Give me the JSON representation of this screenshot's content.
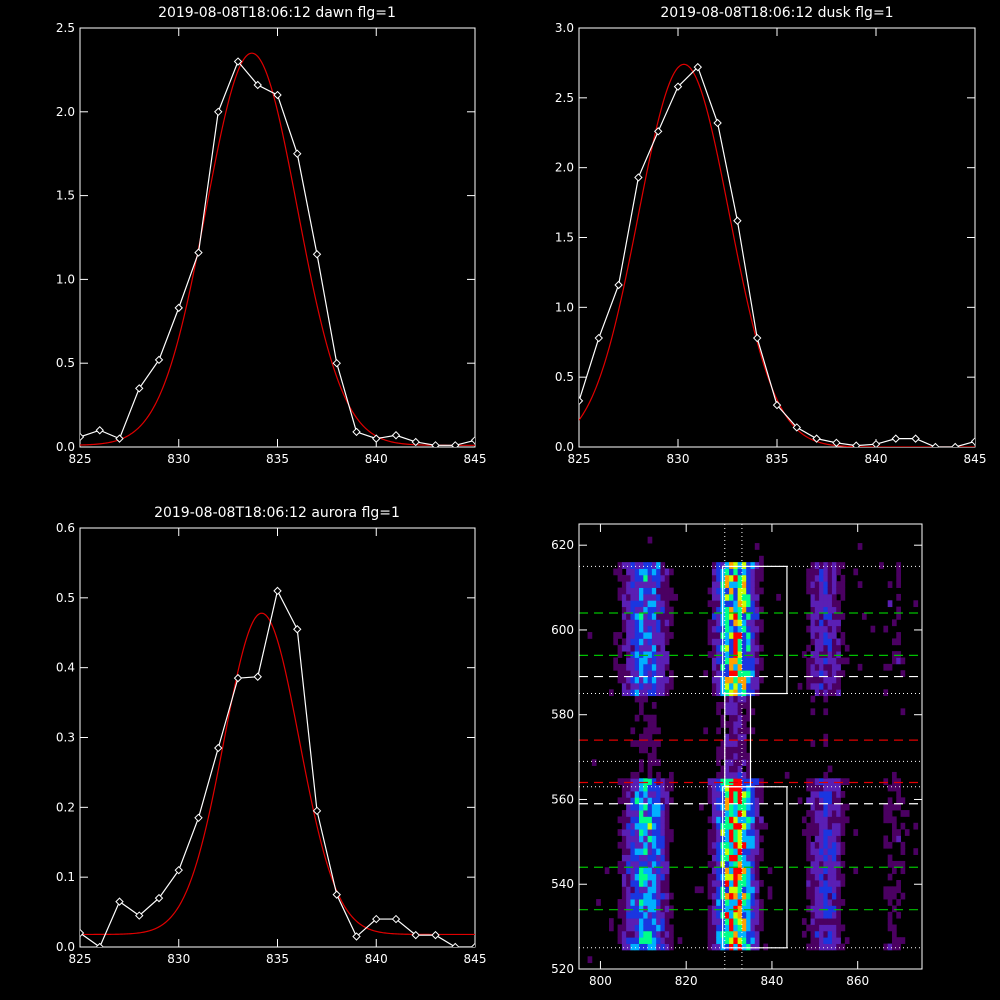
{
  "chart_data": [
    {
      "type": "line",
      "title": "2019-08-08T18:06:12 dawn flg=1",
      "xlabel": "",
      "ylabel": "",
      "xlim": [
        825,
        845
      ],
      "ylim": [
        0,
        2.5
      ],
      "xticks": [
        "825",
        "830",
        "835",
        "840",
        "845"
      ],
      "yticks": [
        "0.0",
        "0.5",
        "1.0",
        "1.5",
        "2.0",
        "2.5"
      ],
      "ytick_values": [
        0,
        0.5,
        1.0,
        1.5,
        2.0,
        2.5
      ],
      "series": [
        {
          "kind": "data-markers",
          "x": [
            825,
            826,
            827,
            828,
            829,
            830,
            831,
            832,
            833,
            834,
            835,
            836,
            837,
            838,
            839,
            840,
            841,
            842,
            843,
            844,
            845
          ],
          "y": [
            0.06,
            0.1,
            0.05,
            0.35,
            0.52,
            0.83,
            1.16,
            2.0,
            2.3,
            2.16,
            2.1,
            1.75,
            1.15,
            0.5,
            0.09,
            0.05,
            0.07,
            0.03,
            0.01,
            0.01,
            0.04
          ]
        },
        {
          "kind": "gaussian-fit",
          "amplitude": 2.34,
          "center": 833.7,
          "sigma": 2.3,
          "offset": 0.01
        }
      ]
    },
    {
      "type": "line",
      "title": "2019-08-08T18:06:12 dusk flg=1",
      "xlabel": "",
      "ylabel": "",
      "xlim": [
        825,
        845
      ],
      "ylim": [
        0,
        3.0
      ],
      "xticks": [
        "825",
        "830",
        "835",
        "840",
        "845"
      ],
      "yticks": [
        "0.0",
        "0.5",
        "1.0",
        "1.5",
        "2.0",
        "2.5",
        "3.0"
      ],
      "ytick_values": [
        0,
        0.5,
        1.0,
        1.5,
        2.0,
        2.5,
        3.0
      ],
      "series": [
        {
          "kind": "data-markers",
          "x": [
            825,
            826,
            827,
            828,
            829,
            830,
            831,
            832,
            833,
            834,
            835,
            836,
            837,
            838,
            839,
            840,
            841,
            842,
            843,
            844,
            845
          ],
          "y": [
            0.33,
            0.78,
            1.16,
            1.93,
            2.26,
            2.58,
            2.72,
            2.32,
            1.62,
            0.78,
            0.3,
            0.14,
            0.06,
            0.03,
            0.01,
            0.02,
            0.06,
            0.06,
            0.0,
            0.0,
            0.04
          ]
        },
        {
          "kind": "gaussian-fit",
          "amplitude": 2.74,
          "center": 830.3,
          "sigma": 2.3,
          "offset": 0.0
        }
      ]
    },
    {
      "type": "line",
      "title": "2019-08-08T18:06:12 aurora flg=1",
      "xlabel": "",
      "ylabel": "",
      "xlim": [
        825,
        845
      ],
      "ylim": [
        0,
        0.6
      ],
      "xticks": [
        "825",
        "830",
        "835",
        "840",
        "845"
      ],
      "yticks": [
        "0.0",
        "0.1",
        "0.2",
        "0.3",
        "0.4",
        "0.5",
        "0.6"
      ],
      "ytick_values": [
        0,
        0.1,
        0.2,
        0.3,
        0.4,
        0.5,
        0.6
      ],
      "series": [
        {
          "kind": "data-markers",
          "x": [
            825,
            826,
            827,
            828,
            829,
            830,
            831,
            832,
            833,
            834,
            835,
            836,
            837,
            838,
            839,
            840,
            841,
            842,
            843,
            844,
            845
          ],
          "y": [
            0.02,
            0.0,
            0.065,
            0.045,
            0.07,
            0.11,
            0.185,
            0.285,
            0.385,
            0.387,
            0.51,
            0.455,
            0.195,
            0.075,
            0.015,
            0.04,
            0.04,
            0.017,
            0.017,
            0.0,
            0.0
          ]
        },
        {
          "kind": "gaussian-fit",
          "amplitude": 0.46,
          "center": 834.2,
          "sigma": 1.9,
          "offset": 0.018
        }
      ]
    },
    {
      "type": "heatmap",
      "title": "",
      "xlabel": "",
      "ylabel": "",
      "xlim": [
        795,
        875
      ],
      "ylim": [
        520,
        625
      ],
      "xticks": [
        "800",
        "820",
        "840",
        "860"
      ],
      "xtick_values": [
        800,
        820,
        840,
        860
      ],
      "yticks": [
        "520",
        "540",
        "560",
        "580",
        "600",
        "620"
      ],
      "ytick_values": [
        520,
        540,
        560,
        580,
        600,
        620
      ],
      "emission_columns": [
        {
          "center": 810,
          "width": 3.5,
          "strength": 0.55
        },
        {
          "center": 831,
          "width": 3.0,
          "strength": 1.0
        },
        {
          "center": 852,
          "width": 3.0,
          "strength": 0.35
        },
        {
          "center": 868,
          "width": 3.0,
          "strength": 0.12
        }
      ],
      "green_dashed_y": [
        604,
        594,
        544,
        534
      ],
      "white_dashed_y": [
        589,
        559
      ],
      "red_dashed_y": [
        574,
        564
      ],
      "dotted_vertical_x": [
        829,
        833
      ],
      "dotted_horizontal_y": [
        615,
        585,
        569,
        563,
        525
      ],
      "boxes": [
        {
          "x": [
            828.5,
            843.5
          ],
          "y": [
            585,
            615
          ]
        },
        {
          "x": [
            828.5,
            843.5
          ],
          "y": [
            525,
            563
          ]
        },
        {
          "x": [
            829,
            835
          ],
          "y": [
            563,
            585
          ]
        }
      ],
      "colormap": [
        "#000000",
        "#4b0062",
        "#5a1fb4",
        "#1a36e0",
        "#00b0ff",
        "#00ff88",
        "#c8ff00",
        "#ffa000",
        "#ff0000"
      ]
    }
  ],
  "colors": {
    "background": "#000000",
    "axes": "#ffffff",
    "data": "#ffffff",
    "fit": "#e00000",
    "green_dash": "#00c000",
    "white_dash": "#ffffff",
    "red_dash": "#e00000"
  }
}
